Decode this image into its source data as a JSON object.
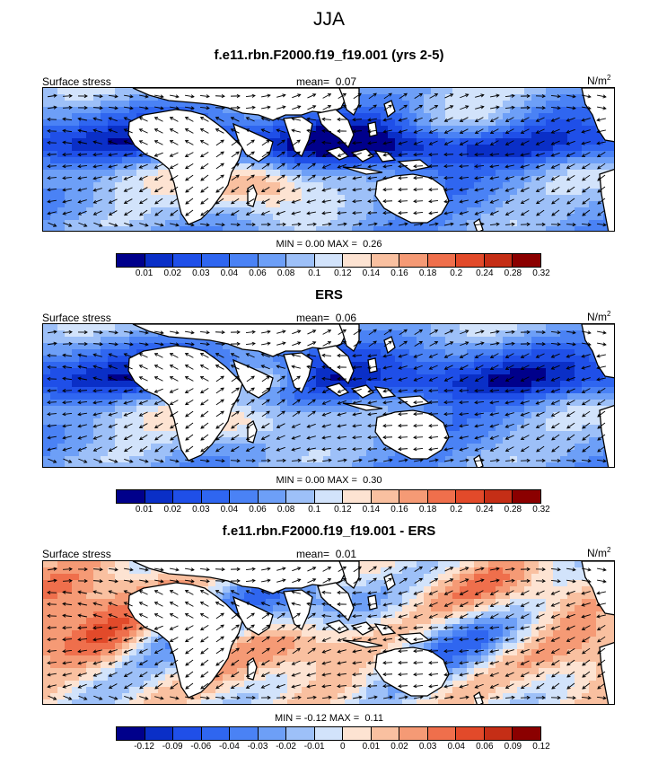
{
  "suptitle": "JJA",
  "panels": [
    {
      "title": "f.e11.rbn.F2000.f19_f19.001 (yrs 2-5)",
      "left_label": "Surface stress",
      "mean_label": "mean=",
      "mean_value": "0.07",
      "units": "N/m",
      "units_sup": "2",
      "min_label": "MIN =",
      "min_value": "0.00",
      "max_label": "MAX =",
      "max_value": "0.26",
      "colorbar_ticks": [
        "0.01",
        "0.02",
        "0.03",
        "0.04",
        "0.06",
        "0.08",
        "0.1",
        "0.12",
        "0.14",
        "0.16",
        "0.18",
        "0.2",
        "0.24",
        "0.28",
        "0.32"
      ],
      "field": "model"
    },
    {
      "title": "ERS",
      "left_label": "Surface stress",
      "mean_label": "mean=",
      "mean_value": "0.06",
      "units": "N/m",
      "units_sup": "2",
      "min_label": "MIN =",
      "min_value": "0.00",
      "max_label": "MAX =",
      "max_value": "0.30",
      "colorbar_ticks": [
        "0.01",
        "0.02",
        "0.03",
        "0.04",
        "0.06",
        "0.08",
        "0.1",
        "0.12",
        "0.14",
        "0.16",
        "0.18",
        "0.2",
        "0.24",
        "0.28",
        "0.32"
      ],
      "field": "obs"
    },
    {
      "title": "f.e11.rbn.F2000.f19_f19.001 - ERS",
      "left_label": "Surface stress",
      "mean_label": "mean=",
      "mean_value": "0.01",
      "units": "N/m",
      "units_sup": "2",
      "min_label": "MIN =",
      "min_value": "-0.12",
      "max_label": "MAX =",
      "max_value": "0.11",
      "colorbar_ticks": [
        "-0.12",
        "-0.09",
        "-0.06",
        "-0.04",
        "-0.03",
        "-0.02",
        "-0.01",
        "0",
        "0.01",
        "0.02",
        "0.03",
        "0.04",
        "0.06",
        "0.09",
        "0.12"
      ],
      "field": "diff"
    }
  ],
  "colorbar_colors": [
    "#00008b",
    "#0a2fc7",
    "#1f4fe8",
    "#2f66f0",
    "#4a82f5",
    "#6d9ff7",
    "#9dc0f8",
    "#d2e3fb",
    "#fde3d2",
    "#f9c0a0",
    "#f59a75",
    "#ef6f4c",
    "#e24a2a",
    "#c52e16",
    "#8b0000"
  ],
  "land_color": "#ffffff",
  "coast_color": "#000000"
}
